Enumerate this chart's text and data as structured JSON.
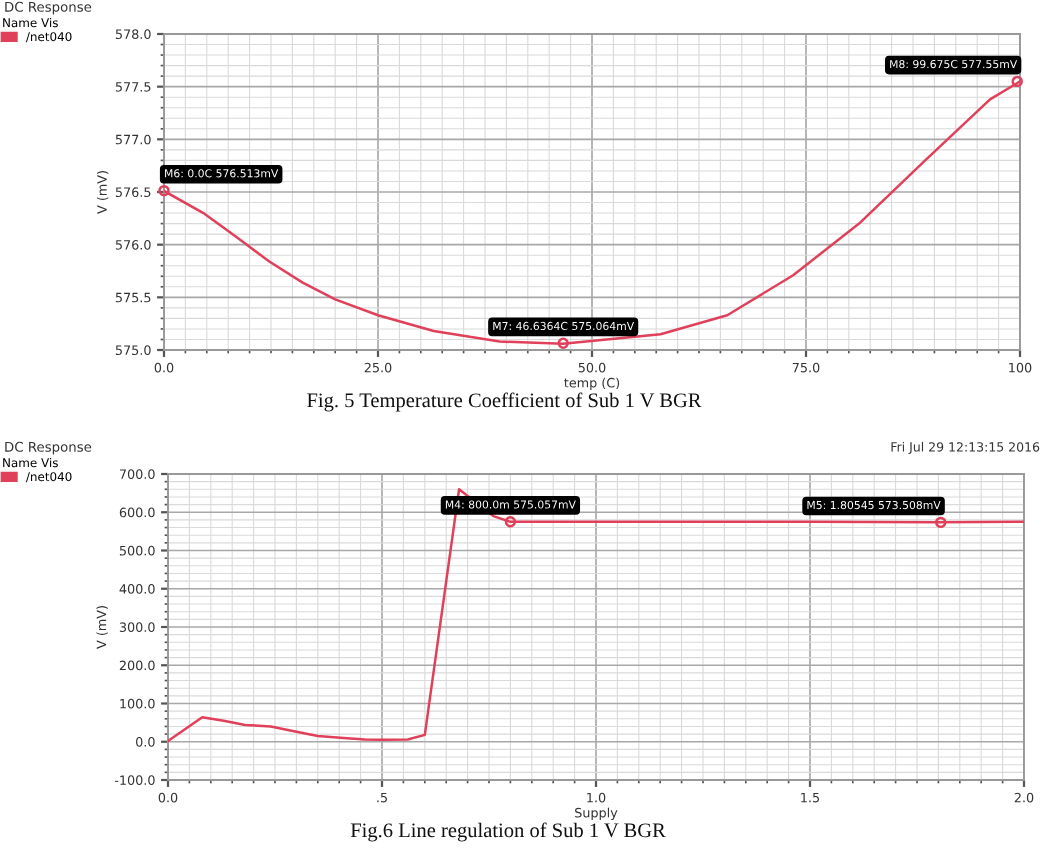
{
  "chart_data": [
    {
      "type": "line",
      "title": "DC Response",
      "xlabel": "temp (C)",
      "ylabel": "V (mV)",
      "legend_title": "Name Vis",
      "legend": "top left",
      "grid": true,
      "xlim": [
        0,
        100
      ],
      "ylim": [
        575,
        578
      ],
      "xticks": [
        {
          "value": 0,
          "label": "0.0"
        },
        {
          "value": 25,
          "label": "25.0"
        },
        {
          "value": 50,
          "label": "50.0"
        },
        {
          "value": 75,
          "label": "75.0"
        },
        100
      ],
      "yticks": [
        {
          "value": 575,
          "label": "575.0"
        },
        {
          "value": 575.5,
          "label": "575.5"
        },
        {
          "value": 576,
          "label": "576.0"
        },
        {
          "value": 576.5,
          "label": "576.5"
        },
        {
          "value": 577,
          "label": "577.0"
        },
        {
          "value": 577.5,
          "label": "577.5"
        },
        {
          "value": 578,
          "label": "578.0"
        }
      ],
      "series": [
        {
          "name": "/net040",
          "color": "#e0405a",
          "x": [
            0,
            4.6,
            8.5,
            12.3,
            16.2,
            20,
            25,
            31.5,
            39.2,
            46.6,
            58,
            65.8,
            73.5,
            81.2,
            88.8,
            96.5,
            100
          ],
          "values": [
            576.51,
            576.3,
            576.07,
            575.84,
            575.64,
            575.48,
            575.33,
            575.18,
            575.08,
            575.06,
            575.15,
            575.33,
            575.71,
            576.2,
            576.79,
            577.38,
            577.55
          ]
        }
      ],
      "annotations": [
        {
          "text": "M6: 0.0C 576.513mV",
          "x": 0,
          "y": 576.513
        },
        {
          "text": "M7: 46.6364C 575.064mV",
          "x": 46.6364,
          "y": 575.064
        },
        {
          "text": "M8: 99.675C 577.55mV",
          "x": 99.675,
          "y": 577.55
        },
        "Fig. 5 Temperature Coefficient of Sub 1 V BGR"
      ]
    },
    {
      "type": "line",
      "title": "DC Response",
      "subtitle": "Fri Jul 29 12:13:15 2016",
      "xlabel": "Supply",
      "ylabel": "V (mV)",
      "legend_title": "Name Vis",
      "legend": "top left",
      "grid": true,
      "xlim": [
        0,
        2
      ],
      "ylim": [
        -100,
        700
      ],
      "xticks": [
        {
          "value": 0,
          "label": "0.0"
        },
        {
          "value": 0.5,
          "label": ".5"
        },
        {
          "value": 1,
          "label": "1.0"
        },
        {
          "value": 1.5,
          "label": "1.5"
        },
        {
          "value": 2,
          "label": "2.0"
        }
      ],
      "yticks": [
        {
          "value": -100,
          "label": "-100.0"
        },
        {
          "value": 0,
          "label": "0.0"
        },
        {
          "value": 100,
          "label": "100.0"
        },
        {
          "value": 200,
          "label": "200.0"
        },
        {
          "value": 300,
          "label": "300.0"
        },
        {
          "value": 400,
          "label": "400.0"
        },
        {
          "value": 500,
          "label": "500.0"
        },
        {
          "value": 600,
          "label": "600.0"
        },
        {
          "value": 700,
          "label": "700.0"
        }
      ],
      "series": [
        {
          "name": "/net040",
          "color": "#e0405a",
          "x": [
            0,
            0.08,
            0.13,
            0.18,
            0.24,
            0.3,
            0.35,
            0.41,
            0.46,
            0.5,
            0.56,
            0.6,
            0.68,
            0.76,
            0.8,
            1.0,
            1.5,
            1.8,
            2.0
          ],
          "values": [
            2,
            64,
            55,
            44,
            40,
            26,
            15,
            10,
            6,
            5,
            6,
            18,
            660,
            590,
            575,
            575,
            575,
            574,
            575
          ]
        }
      ],
      "annotations": [
        {
          "text": "M4: 800.0m 575.057mV",
          "x": 0.8,
          "y": 575.057
        },
        {
          "text": "M5: 1.80545 573.508mV",
          "x": 1.80545,
          "y": 573.508
        },
        "Fig.6 Line regulation of Sub 1 V BGR"
      ]
    }
  ]
}
